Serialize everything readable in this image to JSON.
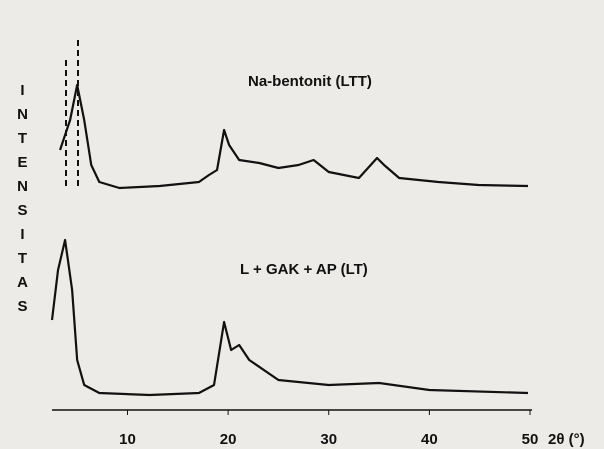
{
  "chart_data": {
    "type": "line",
    "ylabel": "INTENSITAS",
    "xlabel": "2θ (°)",
    "xlim": [
      2.5,
      50
    ],
    "xticks": [
      10,
      20,
      30,
      40,
      50
    ],
    "series": [
      {
        "name": "Na-bentonit (LTT)",
        "color": "#111111",
        "x": [
          3.3,
          4.3,
          5.0,
          5.7,
          6.4,
          7.2,
          9.2,
          13.2,
          17.1,
          18.1,
          18.9,
          19.6,
          20.1,
          21.1,
          23.1,
          25.0,
          27.0,
          28.5,
          30.0,
          33.0,
          34.8,
          35.5,
          37.0,
          40.9,
          44.9,
          49.8
        ],
        "values": [
          40,
          70,
          105,
          70,
          25,
          8,
          2,
          4,
          8,
          15,
          20,
          60,
          45,
          30,
          27,
          22,
          25,
          30,
          18,
          12,
          32,
          25,
          12,
          8,
          5,
          4
        ]
      },
      {
        "name": "L + GAK + AP (LT)",
        "color": "#111111",
        "x": [
          2.5,
          3.1,
          3.8,
          4.5,
          5.0,
          5.7,
          7.2,
          12.2,
          17.1,
          18.6,
          19.6,
          20.3,
          21.1,
          22.1,
          25.0,
          30.0,
          35.0,
          40.0,
          49.8
        ],
        "values": [
          78,
          128,
          158,
          108,
          38,
          13,
          5,
          3,
          5,
          13,
          76,
          48,
          53,
          38,
          18,
          13,
          15,
          8,
          5
        ]
      }
    ]
  }
}
